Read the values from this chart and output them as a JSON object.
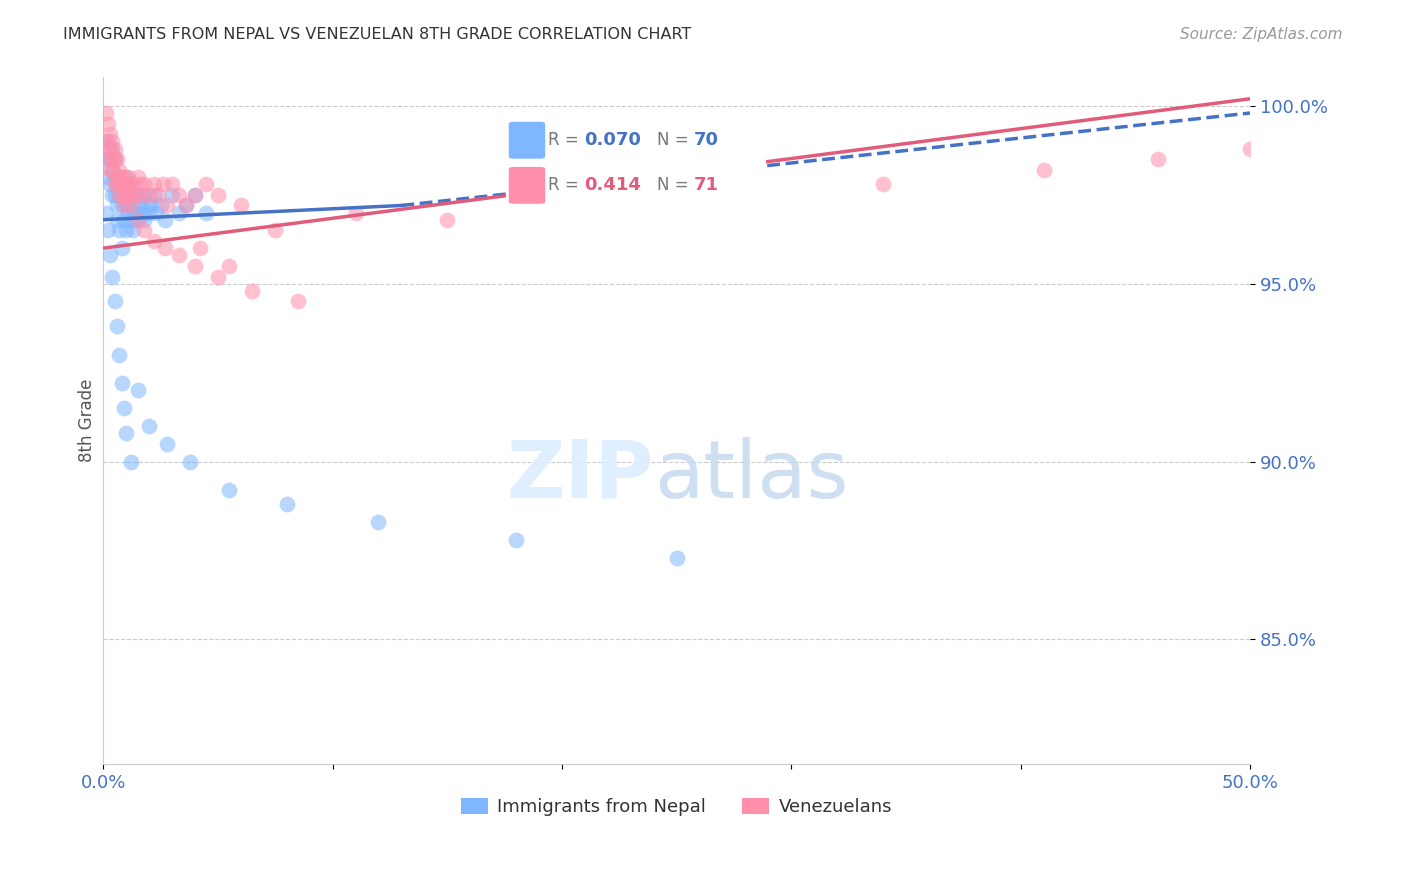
{
  "title": "IMMIGRANTS FROM NEPAL VS VENEZUELAN 8TH GRADE CORRELATION CHART",
  "source": "Source: ZipAtlas.com",
  "ylabel": "8th Grade",
  "legend_nepal": "Immigrants from Nepal",
  "legend_venezuelan": "Venezuelans",
  "R_nepal": 0.07,
  "N_nepal": 70,
  "R_venezuelan": 0.414,
  "N_venezuelan": 71,
  "xlim": [
    0.0,
    0.5
  ],
  "ylim": [
    0.815,
    1.008
  ],
  "yticks": [
    0.85,
    0.9,
    0.95,
    1.0
  ],
  "ytick_labels": [
    "85.0%",
    "90.0%",
    "95.0%",
    "100.0%"
  ],
  "xticks": [
    0.0,
    0.1,
    0.2,
    0.3,
    0.4,
    0.5
  ],
  "xtick_labels": [
    "0.0%",
    "",
    "",
    "",
    "",
    "50.0%"
  ],
  "color_nepal": "#7EB6FF",
  "color_venezuelan": "#FF8FAB",
  "color_nepal_line": "#4472C4",
  "color_venezuelan_line": "#E05C7A",
  "color_axis_labels": "#4472C4",
  "nepal_x": [
    0.001,
    0.002,
    0.002,
    0.003,
    0.003,
    0.004,
    0.004,
    0.004,
    0.005,
    0.005,
    0.005,
    0.006,
    0.006,
    0.006,
    0.007,
    0.007,
    0.007,
    0.008,
    0.008,
    0.008,
    0.009,
    0.009,
    0.01,
    0.01,
    0.01,
    0.011,
    0.011,
    0.012,
    0.012,
    0.013,
    0.013,
    0.014,
    0.015,
    0.015,
    0.016,
    0.017,
    0.018,
    0.018,
    0.019,
    0.02,
    0.021,
    0.022,
    0.023,
    0.025,
    0.027,
    0.03,
    0.033,
    0.036,
    0.04,
    0.045,
    0.001,
    0.002,
    0.003,
    0.004,
    0.005,
    0.006,
    0.007,
    0.008,
    0.009,
    0.01,
    0.012,
    0.015,
    0.02,
    0.028,
    0.038,
    0.055,
    0.08,
    0.12,
    0.18,
    0.25
  ],
  "nepal_y": [
    0.985,
    0.99,
    0.98,
    0.985,
    0.978,
    0.982,
    0.975,
    0.988,
    0.98,
    0.975,
    0.985,
    0.972,
    0.978,
    0.968,
    0.975,
    0.965,
    0.98,
    0.972,
    0.96,
    0.978,
    0.968,
    0.975,
    0.98,
    0.972,
    0.965,
    0.975,
    0.97,
    0.978,
    0.968,
    0.972,
    0.965,
    0.97,
    0.975,
    0.968,
    0.972,
    0.97,
    0.975,
    0.968,
    0.972,
    0.97,
    0.972,
    0.975,
    0.97,
    0.972,
    0.968,
    0.975,
    0.97,
    0.972,
    0.975,
    0.97,
    0.97,
    0.965,
    0.958,
    0.952,
    0.945,
    0.938,
    0.93,
    0.922,
    0.915,
    0.908,
    0.9,
    0.92,
    0.91,
    0.905,
    0.9,
    0.892,
    0.888,
    0.883,
    0.878,
    0.873
  ],
  "venezu_x": [
    0.001,
    0.002,
    0.002,
    0.003,
    0.003,
    0.004,
    0.004,
    0.005,
    0.005,
    0.006,
    0.006,
    0.007,
    0.007,
    0.008,
    0.008,
    0.009,
    0.009,
    0.01,
    0.01,
    0.011,
    0.011,
    0.012,
    0.013,
    0.014,
    0.015,
    0.016,
    0.017,
    0.018,
    0.02,
    0.022,
    0.024,
    0.026,
    0.028,
    0.03,
    0.033,
    0.036,
    0.04,
    0.045,
    0.05,
    0.06,
    0.001,
    0.002,
    0.003,
    0.004,
    0.005,
    0.006,
    0.007,
    0.008,
    0.009,
    0.01,
    0.012,
    0.015,
    0.018,
    0.022,
    0.027,
    0.033,
    0.04,
    0.05,
    0.065,
    0.085,
    0.11,
    0.15,
    0.2,
    0.27,
    0.34,
    0.41,
    0.46,
    0.5,
    0.042,
    0.055,
    0.075
  ],
  "venezu_y": [
    0.99,
    0.988,
    0.985,
    0.982,
    0.988,
    0.985,
    0.982,
    0.978,
    0.985,
    0.98,
    0.978,
    0.975,
    0.98,
    0.978,
    0.975,
    0.98,
    0.972,
    0.978,
    0.975,
    0.98,
    0.978,
    0.975,
    0.978,
    0.975,
    0.98,
    0.978,
    0.975,
    0.978,
    0.975,
    0.978,
    0.975,
    0.978,
    0.972,
    0.978,
    0.975,
    0.972,
    0.975,
    0.978,
    0.975,
    0.972,
    0.998,
    0.995,
    0.992,
    0.99,
    0.988,
    0.985,
    0.982,
    0.98,
    0.978,
    0.975,
    0.972,
    0.968,
    0.965,
    0.962,
    0.96,
    0.958,
    0.955,
    0.952,
    0.948,
    0.945,
    0.97,
    0.968,
    0.972,
    0.975,
    0.978,
    0.982,
    0.985,
    0.988,
    0.96,
    0.955,
    0.965
  ]
}
